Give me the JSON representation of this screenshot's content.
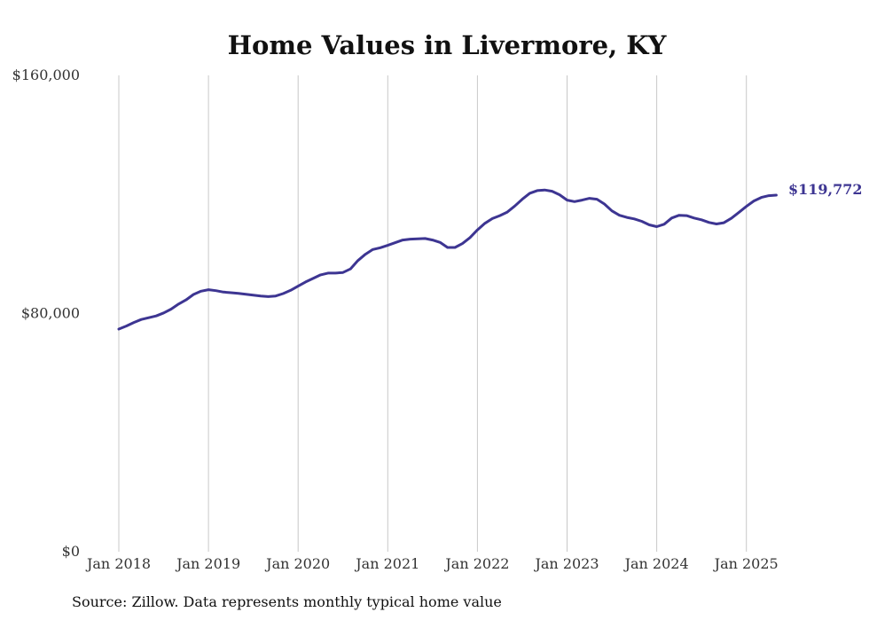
{
  "chart_data": {
    "type": "line",
    "title": "Home Values in Livermore, KY",
    "source": "Source: Zillow. Data represents monthly typical home value",
    "xlabel": "",
    "ylabel": "",
    "x_range": [
      "2018-01",
      "2025-05"
    ],
    "x_ticks": [
      "Jan 2018",
      "Jan 2019",
      "Jan 2020",
      "Jan 2021",
      "Jan 2022",
      "Jan 2023",
      "Jan 2024",
      "Jan 2025"
    ],
    "y_ticks": [
      "$0",
      "$80,000",
      "$160,000"
    ],
    "ylim": [
      0,
      160000
    ],
    "grid": "vertical",
    "end_label": "$119,772",
    "color": "#3d3592",
    "series": [
      {
        "x": [
          "2018-01",
          "2018-02",
          "2018-03",
          "2018-04",
          "2018-05",
          "2018-06",
          "2018-07",
          "2018-08",
          "2018-09",
          "2018-10",
          "2018-11",
          "2018-12",
          "2019-01",
          "2019-02",
          "2019-03",
          "2019-04",
          "2019-05",
          "2019-06",
          "2019-07",
          "2019-08",
          "2019-09",
          "2019-10",
          "2019-11",
          "2019-12",
          "2020-01",
          "2020-02",
          "2020-03",
          "2020-04",
          "2020-05",
          "2020-06",
          "2020-07",
          "2020-08",
          "2020-09",
          "2020-10",
          "2020-11",
          "2020-12",
          "2021-01",
          "2021-02",
          "2021-03",
          "2021-04",
          "2021-05",
          "2021-06",
          "2021-07",
          "2021-08",
          "2021-09",
          "2021-10",
          "2021-11",
          "2021-12",
          "2022-01",
          "2022-02",
          "2022-03",
          "2022-04",
          "2022-05",
          "2022-06",
          "2022-07",
          "2022-08",
          "2022-09",
          "2022-10",
          "2022-11",
          "2022-12",
          "2023-01",
          "2023-02",
          "2023-03",
          "2023-04",
          "2023-05",
          "2023-06",
          "2023-07",
          "2023-08",
          "2023-09",
          "2023-10",
          "2023-11",
          "2023-12",
          "2024-01",
          "2024-02",
          "2024-03",
          "2024-04",
          "2024-05",
          "2024-06",
          "2024-07",
          "2024-08",
          "2024-09",
          "2024-10",
          "2024-11",
          "2024-12",
          "2025-01",
          "2025-02",
          "2025-03",
          "2025-04",
          "2025-05"
        ],
        "values": [
          74800,
          75800,
          77000,
          78000,
          78600,
          79200,
          80200,
          81500,
          83200,
          84600,
          86400,
          87500,
          88000,
          87700,
          87200,
          87000,
          86800,
          86500,
          86200,
          85900,
          85700,
          85900,
          86700,
          87800,
          89200,
          90600,
          91800,
          93000,
          93600,
          93600,
          93800,
          95000,
          97800,
          99900,
          101500,
          102100,
          102900,
          103800,
          104700,
          105000,
          105100,
          105200,
          104700,
          103900,
          102200,
          102200,
          103500,
          105500,
          108100,
          110300,
          111900,
          112900,
          114100,
          116100,
          118400,
          120400,
          121300,
          121500,
          121100,
          119900,
          118100,
          117600,
          118100,
          118700,
          118400,
          116800,
          114500,
          113000,
          112300,
          111800,
          111000,
          109800,
          109200,
          110000,
          112100,
          113000,
          112900,
          112100,
          111500,
          110600,
          110100,
          110500,
          112000,
          114000,
          116000,
          117800,
          119000,
          119600,
          119772
        ]
      }
    ]
  }
}
